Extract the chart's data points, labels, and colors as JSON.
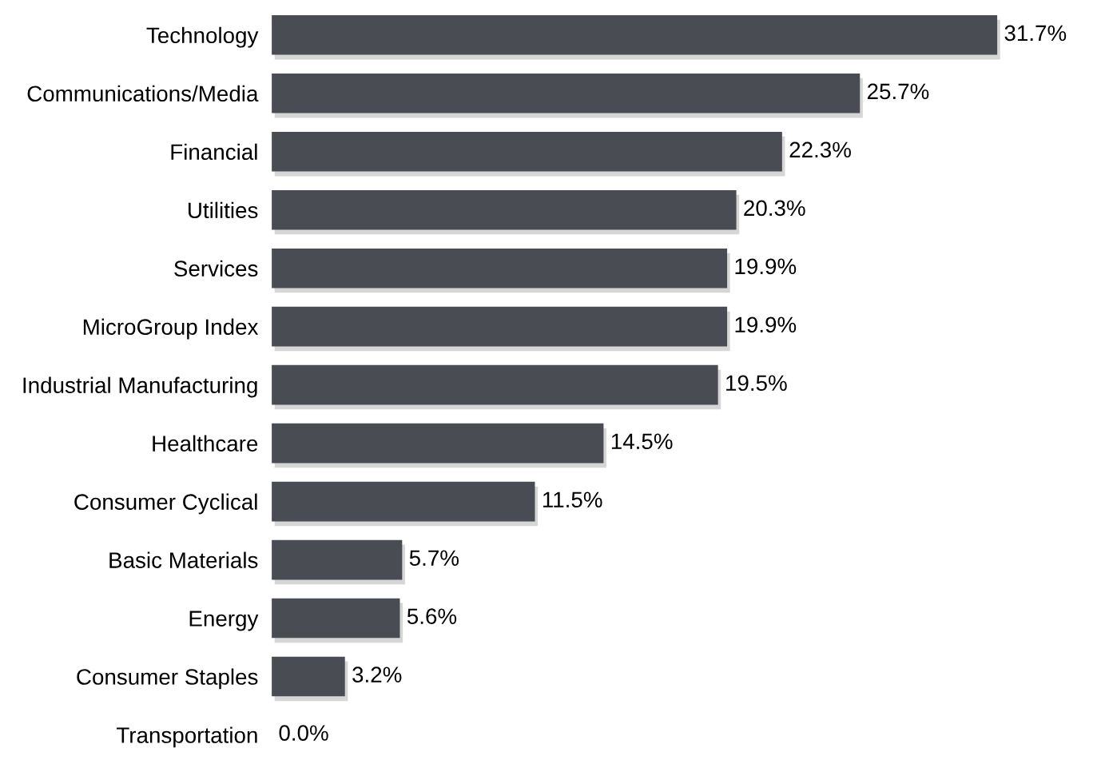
{
  "chart_data": {
    "type": "bar",
    "orientation": "horizontal",
    "categories": [
      "Technology",
      "Communications/Media",
      "Financial",
      "Utilities",
      "Services",
      "MicroGroup Index",
      "Industrial Manufacturing",
      "Healthcare",
      "Consumer Cyclical",
      "Basic Materials",
      "Energy",
      "Consumer Staples",
      "Transportation"
    ],
    "values": [
      31.7,
      25.7,
      22.3,
      20.3,
      19.9,
      19.9,
      19.5,
      14.5,
      11.5,
      5.7,
      5.6,
      3.2,
      0.0
    ],
    "value_labels": [
      "31.7%",
      "25.7%",
      "22.3%",
      "20.3%",
      "19.9%",
      "19.9%",
      "19.5%",
      "14.5%",
      "11.5%",
      "5.7%",
      "5.6%",
      "3.2%",
      "0.0%"
    ],
    "color": "#4a4c53",
    "grid": false,
    "legend": false
  }
}
